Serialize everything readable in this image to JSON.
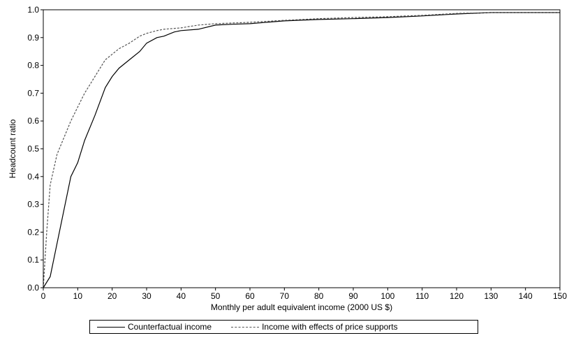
{
  "chart_data": {
    "type": "line",
    "xlabel": "Monthly per adult equivalent income (2000 US $)",
    "ylabel": "Headcount ratio",
    "xlim": [
      0,
      150
    ],
    "ylim": [
      0,
      1.0
    ],
    "x_ticks": [
      "0",
      "10",
      "20",
      "30",
      "40",
      "50",
      "60",
      "70",
      "80",
      "90",
      "100",
      "110",
      "120",
      "130",
      "140",
      "150"
    ],
    "y_ticks": [
      "0.0",
      "0.1",
      "0.2",
      "0.3",
      "0.4",
      "0.5",
      "0.6",
      "0.7",
      "0.8",
      "0.9",
      "1.0"
    ],
    "grid": false,
    "legend_position": "bottom",
    "series": [
      {
        "name": "Counterfactual income",
        "style": "solid",
        "color": "#000000",
        "x": [
          0,
          2,
          5,
          8,
          10,
          12,
          15,
          18,
          20,
          22,
          25,
          28,
          30,
          33,
          35,
          38,
          40,
          45,
          50,
          55,
          60,
          70,
          80,
          90,
          100,
          110,
          120,
          130,
          140,
          150
        ],
        "y": [
          0.0,
          0.04,
          0.22,
          0.4,
          0.45,
          0.53,
          0.62,
          0.72,
          0.76,
          0.79,
          0.82,
          0.85,
          0.88,
          0.9,
          0.905,
          0.92,
          0.925,
          0.93,
          0.945,
          0.948,
          0.95,
          0.96,
          0.965,
          0.968,
          0.972,
          0.978,
          0.985,
          0.99,
          0.99,
          0.99
        ]
      },
      {
        "name": "Income with effects of price supports",
        "style": "dashed",
        "color": "#555555",
        "x": [
          0,
          1,
          2,
          4,
          6,
          8,
          10,
          12,
          15,
          18,
          20,
          22,
          25,
          28,
          30,
          33,
          35,
          40,
          45,
          50,
          60,
          70,
          80,
          90,
          100,
          110,
          120,
          130,
          140,
          150
        ],
        "y": [
          0.0,
          0.2,
          0.37,
          0.48,
          0.54,
          0.6,
          0.65,
          0.7,
          0.76,
          0.82,
          0.84,
          0.86,
          0.88,
          0.905,
          0.915,
          0.925,
          0.93,
          0.935,
          0.945,
          0.95,
          0.955,
          0.962,
          0.968,
          0.972,
          0.975,
          0.98,
          0.987,
          0.99,
          0.99,
          0.99
        ]
      }
    ]
  },
  "legend": {
    "items": [
      "Counterfactual income",
      "Income with effects of price supports"
    ]
  }
}
